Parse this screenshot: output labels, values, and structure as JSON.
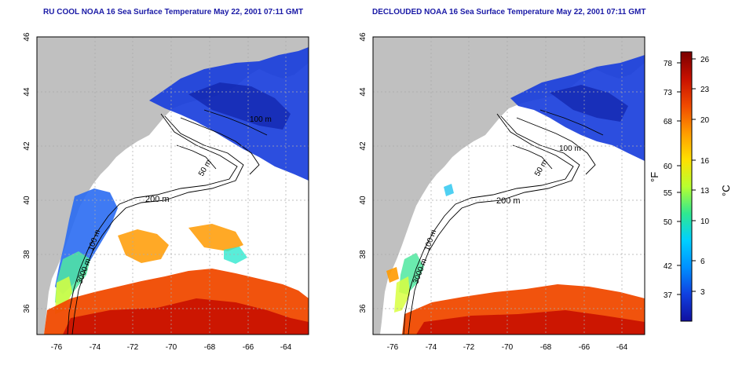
{
  "panels": [
    {
      "id": "left",
      "title": "RU COOL NOAA 16 Sea Surface Temperature May 22, 2001 07:11 GMT",
      "contour_labels": [
        "200 m",
        "50 m",
        "100 m",
        "100 m",
        "3000 m"
      ]
    },
    {
      "id": "right",
      "title": "DECLOUDED NOAA 16 Sea Surface Temperature May 22, 2001 07:11 GMT",
      "contour_labels": [
        "200 m",
        "50 m",
        "100 m",
        "100 m",
        "3000 m"
      ]
    }
  ],
  "axes": {
    "x_ticks": [
      "-76",
      "-74",
      "-72",
      "-70",
      "-68",
      "-66",
      "-64"
    ],
    "y_ticks": [
      "46",
      "44",
      "42",
      "40",
      "38",
      "36"
    ]
  },
  "colorbar": {
    "fahrenheit_ticks": [
      "78",
      "73",
      "68",
      "60",
      "55",
      "50",
      "42",
      "37"
    ],
    "celsius_ticks": [
      "26",
      "23",
      "20",
      "16",
      "13",
      "10",
      "6",
      "3"
    ],
    "fahrenheit_unit": "°F",
    "celsius_unit": "°C",
    "colors": [
      "#7a0000",
      "#c81000",
      "#f04a00",
      "#ff9a00",
      "#ffe000",
      "#b8ff30",
      "#30e890",
      "#00d0ff",
      "#0090ff",
      "#1040e0",
      "#1010a0"
    ]
  },
  "colors": {
    "land": "#c0c0c0",
    "ocean_nodata": "#ffffff",
    "grid": "#aaaaaa",
    "title": "#1a1aa6"
  }
}
